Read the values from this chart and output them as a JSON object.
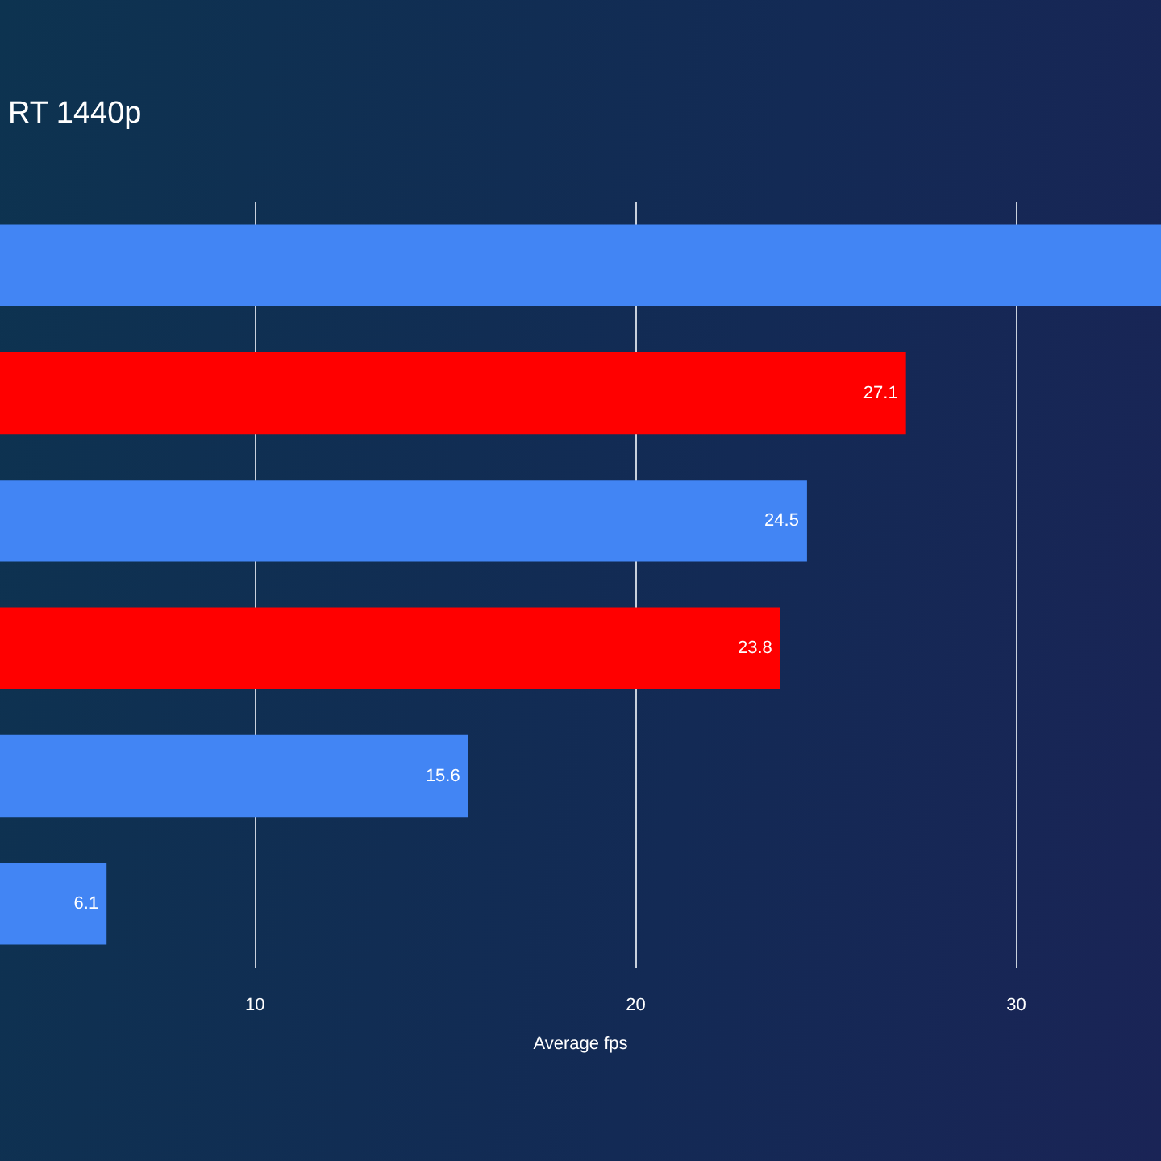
{
  "chart_data": {
    "type": "bar",
    "orientation": "horizontal",
    "title": "RT 1440p",
    "xlabel": "Average fps",
    "categories": [
      null,
      null,
      null,
      null,
      null,
      null
    ],
    "values": [
      33.8,
      27.1,
      24.5,
      23.8,
      15.6,
      6.1
    ],
    "colors": [
      "#4285f4",
      "#ff0000",
      "#4285f4",
      "#ff0000",
      "#4285f4",
      "#4285f4"
    ],
    "value_labels": [
      null,
      "27.1",
      "24.5",
      "23.8",
      "15.6",
      "6.1"
    ],
    "xlim": [
      3.3,
      33.8
    ],
    "xticks": [
      10,
      20,
      30
    ],
    "grid": "x"
  }
}
